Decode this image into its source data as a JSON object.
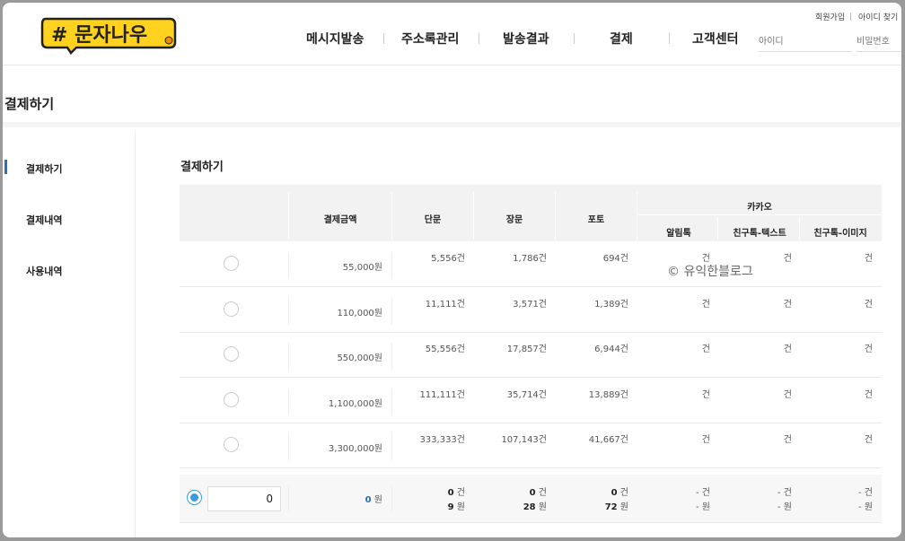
{
  "header": {
    "logo_text": "# 문자나우",
    "nav": [
      "메시지발송",
      "주소록관리",
      "발송결과",
      "결제",
      "고객센터"
    ],
    "util": {
      "signup": "회원가입",
      "find_id": "아이디 찾기"
    },
    "login": {
      "id_placeholder": "아이디",
      "pw_placeholder": "비밀번호"
    }
  },
  "page": {
    "title": "결제하기"
  },
  "sidebar": {
    "items": [
      "결제하기",
      "결제내역",
      "사용내역"
    ]
  },
  "content": {
    "section_title": "결제하기",
    "headers": {
      "amount": "결제금액",
      "short": "단문",
      "long": "장문",
      "photo": "포토",
      "kakao": "카카오",
      "alimtalk": "알림톡",
      "friend_text": "친구톡-텍스트",
      "friend_image": "친구톡-이미지"
    },
    "rows": [
      {
        "amount": "55,000원",
        "short": "5,556건",
        "long": "1,786건",
        "photo": "694건",
        "alim": "건",
        "ftext": "건",
        "fimg": "건"
      },
      {
        "amount": "110,000원",
        "short": "11,111건",
        "long": "3,571건",
        "photo": "1,389건",
        "alim": "건",
        "ftext": "건",
        "fimg": "건"
      },
      {
        "amount": "550,000원",
        "short": "55,556건",
        "long": "17,857건",
        "photo": "6,944건",
        "alim": "건",
        "ftext": "건",
        "fimg": "건"
      },
      {
        "amount": "1,100,000원",
        "short": "111,111건",
        "long": "35,714건",
        "photo": "13,889건",
        "alim": "건",
        "ftext": "건",
        "fimg": "건"
      },
      {
        "amount": "3,300,000원",
        "short": "333,333건",
        "long": "107,143건",
        "photo": "41,667건",
        "alim": "건",
        "ftext": "건",
        "fimg": "건"
      }
    ],
    "custom": {
      "input_value": "0",
      "amount_value": "0",
      "amount_unit": "원",
      "short_count": "0",
      "short_count_unit": "건",
      "short_price": "9",
      "short_price_unit": "원",
      "long_count": "0",
      "long_count_unit": "건",
      "long_price": "28",
      "long_price_unit": "원",
      "photo_count": "0",
      "photo_count_unit": "건",
      "photo_price": "72",
      "photo_price_unit": "원",
      "dash_count": "- 건",
      "dash_price": "- 원"
    }
  },
  "watermark": "© 유익한블로그",
  "colors": {
    "accent": "#2b6fb8",
    "radio": "#3b9be0",
    "logo_yellow": "#ffd21f"
  }
}
